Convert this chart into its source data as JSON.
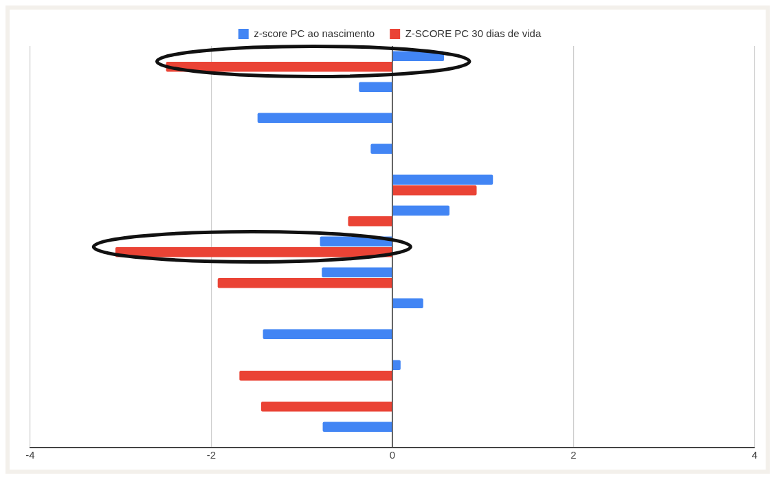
{
  "chart_data": {
    "type": "bar",
    "orientation": "horizontal",
    "categories": [
      null,
      null,
      null,
      null,
      null,
      null,
      null,
      null,
      null,
      null,
      null,
      null,
      null
    ],
    "series": [
      {
        "name": "z-score PC ao nascimento",
        "color": "#4285f4",
        "values": [
          0.57,
          -0.37,
          -1.49,
          -0.24,
          1.11,
          0.63,
          -0.8,
          -0.78,
          0.34,
          -1.43,
          0.09,
          null,
          -0.77
        ]
      },
      {
        "name": "Z-SCORE PC 30 dias de vida",
        "color": "#ea4335",
        "values": [
          -2.5,
          null,
          null,
          null,
          0.93,
          -0.49,
          -3.06,
          -1.93,
          null,
          null,
          -1.69,
          -1.45,
          null
        ]
      }
    ],
    "xlim": [
      -4,
      4
    ],
    "xticks": [
      -4,
      -2,
      0,
      2,
      4
    ],
    "grid": "x",
    "legend": "top",
    "tick_labels": "x"
  }
}
